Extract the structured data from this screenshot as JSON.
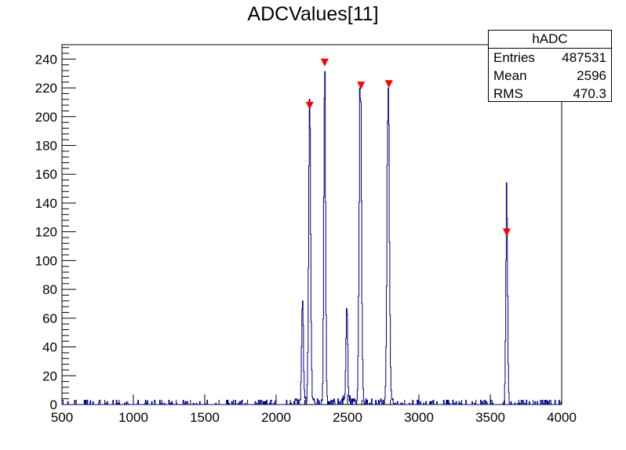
{
  "title": "ADCValues[11]",
  "stats_box": {
    "name": "hADC",
    "rows": [
      {
        "label": "Entries",
        "value": "487531"
      },
      {
        "label": "Mean",
        "value": "2596"
      },
      {
        "label": "RMS",
        "value": "470.3"
      }
    ]
  },
  "colors": {
    "histogram": "#000080",
    "marker": "#ff0000"
  },
  "chart_data": {
    "type": "histogram",
    "title": "ADCValues[11]",
    "xlim": [
      500,
      4000
    ],
    "ylim": [
      0,
      250
    ],
    "x_ticks": [
      500,
      1000,
      1500,
      2000,
      2500,
      3000,
      3500,
      4000
    ],
    "y_ticks": [
      0,
      20,
      40,
      60,
      80,
      100,
      120,
      140,
      160,
      180,
      200,
      220,
      240
    ],
    "grid": false,
    "peaks": [
      {
        "center": 2185,
        "height": 74,
        "sigma": 6
      },
      {
        "center": 2235,
        "height": 206,
        "sigma": 7
      },
      {
        "center": 2340,
        "height": 236,
        "sigma": 6
      },
      {
        "center": 2495,
        "height": 68,
        "sigma": 6
      },
      {
        "center": 2590,
        "height": 230,
        "sigma": 8
      },
      {
        "center": 2785,
        "height": 222,
        "sigma": 8
      },
      {
        "center": 3615,
        "height": 147,
        "sigma": 6
      }
    ],
    "markers": [
      {
        "x": 2235,
        "y": 206
      },
      {
        "x": 2340,
        "y": 236
      },
      {
        "x": 2595,
        "y": 220
      },
      {
        "x": 2790,
        "y": 221
      },
      {
        "x": 3615,
        "y": 118
      }
    ]
  }
}
